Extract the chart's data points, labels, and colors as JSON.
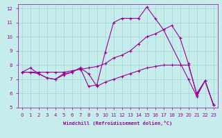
{
  "xlabel": "Windchill (Refroidissement éolien,°C)",
  "xlim": [
    -0.5,
    23.5
  ],
  "ylim": [
    5,
    12.3
  ],
  "xticks": [
    0,
    1,
    2,
    3,
    4,
    5,
    6,
    7,
    8,
    9,
    10,
    11,
    12,
    13,
    14,
    15,
    16,
    17,
    18,
    19,
    20,
    21,
    22,
    23
  ],
  "yticks": [
    5,
    6,
    7,
    8,
    9,
    10,
    11,
    12
  ],
  "background_color": "#c6ecec",
  "line_color": "#990099",
  "grid_color": "#a8d8d8",
  "lines": [
    {
      "x": [
        0,
        1,
        2,
        3,
        4,
        5,
        6,
        7,
        8,
        9,
        10,
        11,
        12,
        13,
        14,
        15,
        16,
        17,
        20,
        21,
        22,
        23
      ],
      "y": [
        7.5,
        7.8,
        7.4,
        7.1,
        7.0,
        7.4,
        7.5,
        7.8,
        6.5,
        6.6,
        8.9,
        11.0,
        11.3,
        11.3,
        11.3,
        12.1,
        11.3,
        10.5,
        7.0,
        5.8,
        6.9,
        5.2
      ]
    },
    {
      "x": [
        0,
        1,
        2,
        3,
        4,
        5,
        6,
        7,
        8,
        9,
        10,
        11,
        12,
        13,
        14,
        15,
        16,
        17,
        18,
        19,
        20,
        21,
        22,
        23
      ],
      "y": [
        7.5,
        7.5,
        7.5,
        7.5,
        7.5,
        7.5,
        7.6,
        7.7,
        7.8,
        7.9,
        8.1,
        8.5,
        8.7,
        9.0,
        9.5,
        10.0,
        10.2,
        10.5,
        10.8,
        9.9,
        8.1,
        5.9,
        6.9,
        5.2
      ]
    },
    {
      "x": [
        0,
        1,
        2,
        3,
        4,
        5,
        6,
        7,
        8,
        9,
        10,
        11,
        12,
        13,
        14,
        15,
        16,
        17,
        18,
        19,
        20,
        21,
        22,
        23
      ],
      "y": [
        7.5,
        7.5,
        7.4,
        7.1,
        7.0,
        7.3,
        7.5,
        7.8,
        7.4,
        6.5,
        6.8,
        7.0,
        7.2,
        7.4,
        7.6,
        7.8,
        7.9,
        8.0,
        8.0,
        8.0,
        8.0,
        6.0,
        6.9,
        5.2
      ]
    }
  ]
}
